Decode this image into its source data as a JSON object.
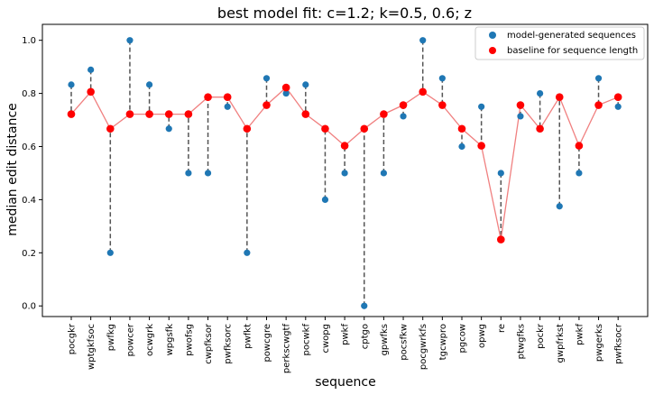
{
  "chart_data": {
    "type": "scatter",
    "title": "best model fit: c=1.2; k=0.5, 0.6; z",
    "xlabel": "sequence",
    "ylabel": "median edit distance",
    "ylim": [
      -0.04,
      1.06
    ],
    "yticks": [
      "0.0",
      "0.2",
      "0.4",
      "0.6",
      "0.8",
      "1.0"
    ],
    "grid": false,
    "legend_position": "top-right",
    "categories": [
      "pocgkr",
      "wptgkfsoc",
      "pwfkg",
      "powcer",
      "ocwgrk",
      "wpgsfk",
      "pwofsg",
      "cwpfksor",
      "pwfksorc",
      "pwfkt",
      "powcgre",
      "perkscwgtf",
      "pocwkf",
      "cwopg",
      "pwkf",
      "cptgo",
      "gpwfks",
      "pocsfkw",
      "pocgwrkfs",
      "tgcwpro",
      "pgcow",
      "opwg",
      "re",
      "ptwgfks",
      "pockr",
      "gwpfrkst",
      "pwkf",
      "pwgerks",
      "pwfksocr"
    ],
    "series": [
      {
        "name": "model-generated sequences",
        "color": "#1f77b4",
        "values": [
          0.833,
          0.889,
          0.2,
          1.0,
          0.833,
          0.667,
          0.5,
          0.5,
          0.75,
          0.2,
          0.857,
          0.8,
          0.833,
          0.4,
          0.5,
          0.0,
          0.5,
          0.714,
          1.0,
          0.857,
          0.6,
          0.75,
          0.5,
          0.714,
          0.8,
          0.375,
          0.5,
          0.857,
          0.75
        ]
      },
      {
        "name": "baseline for sequence length",
        "color": "#ff0000",
        "line_color": "#f08080",
        "values": [
          0.722,
          0.806,
          0.667,
          0.722,
          0.722,
          0.722,
          0.722,
          0.786,
          0.786,
          0.667,
          0.756,
          0.822,
          0.722,
          0.667,
          0.603,
          0.667,
          0.722,
          0.756,
          0.806,
          0.756,
          0.667,
          0.603,
          0.25,
          0.756,
          0.667,
          0.786,
          0.603,
          0.756,
          0.786
        ]
      }
    ]
  }
}
